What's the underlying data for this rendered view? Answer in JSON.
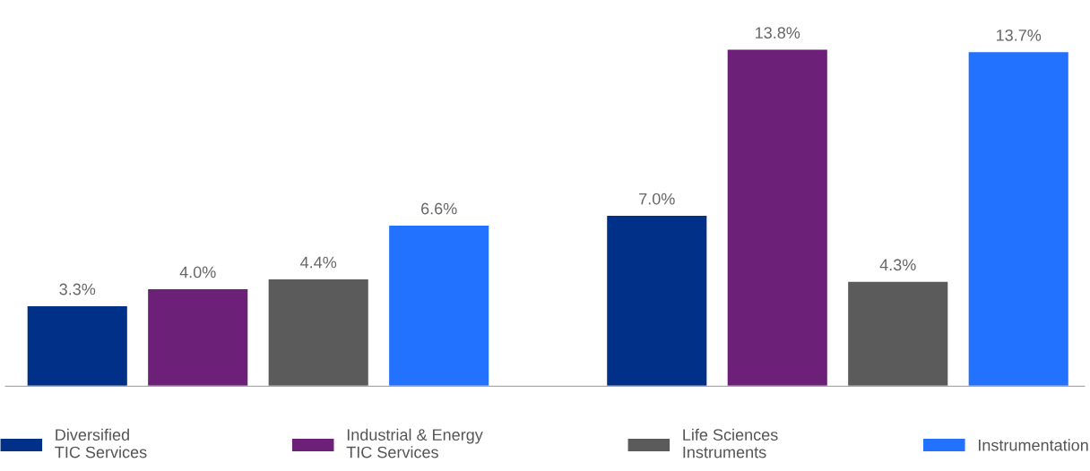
{
  "chart_data": {
    "type": "bar",
    "categories": [
      null,
      null
    ],
    "legend": "bottom",
    "grid": false,
    "series": [
      {
        "name": "Diversified\nTIC Services",
        "color": "#003087",
        "values": [
          3.3,
          7.0
        ],
        "value_labels": [
          "3.3%",
          "7.0%"
        ]
      },
      {
        "name": "Industrial & Energy\nTIC Services",
        "color": "#6d2077",
        "values": [
          4.0,
          13.8
        ],
        "value_labels": [
          "4.0%",
          "13.8%"
        ]
      },
      {
        "name": "Life Sciences\nInstruments",
        "color": "#5b5b5b",
        "values": [
          4.4,
          4.3
        ],
        "value_labels": [
          "4.4%",
          "4.3%"
        ]
      },
      {
        "name": "Instrumentation",
        "color": "#2271ff",
        "values": [
          6.6,
          13.7
        ],
        "value_labels": [
          "6.6%",
          "13.7%"
        ]
      }
    ]
  }
}
